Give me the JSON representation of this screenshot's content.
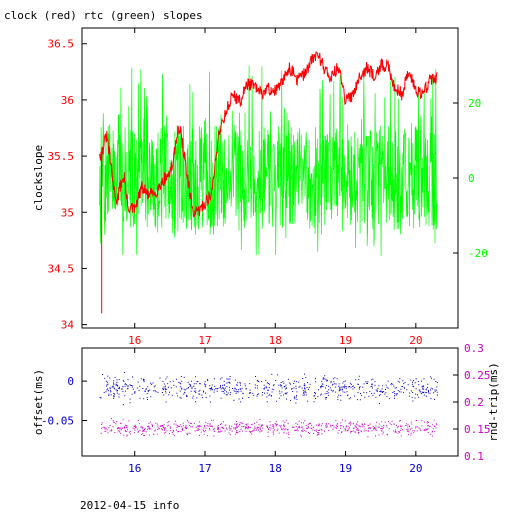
{
  "title": "clock (red) rtc (green) slopes",
  "footer": "2012-04-15 info",
  "colors": {
    "clock": "#ff0000",
    "rtc": "#00ff00",
    "offset": "#0000cc",
    "rtt": "#cc00cc",
    "axis": "#000000"
  },
  "chart_data": [
    {
      "type": "line",
      "id": "slopes",
      "title": "clock (red) rtc (green) slopes",
      "ylabel": "clockslope",
      "ylabel_right": "",
      "xlim": [
        15.25,
        20.6
      ],
      "ylim": [
        33.97,
        36.64
      ],
      "ylim_right": [
        -40,
        40
      ],
      "x_ticks": [
        16,
        17,
        18,
        19,
        20
      ],
      "x_tick_labels": [
        "16",
        "17",
        "18",
        "19",
        "20"
      ],
      "y_ticks": [
        34,
        34.5,
        35,
        35.5,
        36,
        36.5
      ],
      "y_tick_labels": [
        "34",
        "34.5",
        "35",
        "35.5",
        "36",
        "36.5"
      ],
      "y_right_ticks": [
        -20,
        0,
        20
      ],
      "y_right_tick_labels": [
        "-20",
        "0",
        "20"
      ],
      "grid": false,
      "series": [
        {
          "name": "clock",
          "axis": "left",
          "x": [
            15.5,
            15.52,
            15.56,
            15.6,
            15.65,
            15.7,
            15.75,
            15.8,
            15.85,
            15.9,
            16.0,
            16.1,
            16.2,
            16.3,
            16.4,
            16.5,
            16.55,
            16.6,
            16.65,
            16.7,
            16.75,
            16.8,
            16.85,
            16.9,
            17.0,
            17.1,
            17.2,
            17.3,
            17.4,
            17.5,
            17.6,
            17.7,
            17.8,
            17.9,
            18.0,
            18.1,
            18.2,
            18.3,
            18.4,
            18.5,
            18.6,
            18.7,
            18.8,
            18.9,
            19.0,
            19.1,
            19.2,
            19.3,
            19.4,
            19.5,
            19.6,
            19.7,
            19.8,
            19.9,
            20.0,
            20.1,
            20.2,
            20.3
          ],
          "values": [
            35.55,
            35.5,
            35.6,
            35.68,
            35.48,
            35.22,
            35.1,
            35.25,
            35.32,
            35.05,
            35.02,
            35.22,
            35.15,
            35.18,
            35.28,
            35.35,
            35.45,
            35.72,
            35.72,
            35.52,
            35.3,
            35.1,
            34.98,
            35.0,
            35.08,
            35.18,
            35.72,
            35.9,
            36.05,
            35.98,
            36.15,
            36.12,
            36.05,
            36.1,
            36.08,
            36.15,
            36.3,
            36.18,
            36.22,
            36.33,
            36.42,
            36.28,
            36.2,
            36.3,
            35.98,
            36.05,
            36.22,
            36.28,
            36.22,
            36.3,
            36.3,
            36.12,
            36.05,
            36.25,
            36.1,
            36.05,
            36.18,
            36.2
          ]
        },
        {
          "name": "rtc",
          "axis": "right",
          "x": [
            15.5,
            16.0,
            16.5,
            17.0,
            17.5,
            18.0,
            18.5,
            19.0,
            19.5,
            20.0,
            20.3
          ],
          "values": [
            0,
            0,
            0,
            0,
            0,
            0,
            0,
            0,
            0,
            0,
            0
          ],
          "noise_range": [
            -21,
            30
          ]
        }
      ]
    },
    {
      "type": "scatter",
      "id": "offset",
      "ylabel": "offset(ms)",
      "ylabel_right": "rnd-trip(ms)",
      "xlim": [
        15.25,
        20.6
      ],
      "ylim": [
        -0.095,
        0.042
      ],
      "ylim_right": [
        0.1,
        0.3
      ],
      "x_ticks": [
        16,
        17,
        18,
        19,
        20
      ],
      "x_tick_labels": [
        "16",
        "17",
        "18",
        "19",
        "20"
      ],
      "y_ticks": [
        -0.05,
        0
      ],
      "y_tick_labels": [
        "-0.05",
        "0"
      ],
      "y_right_ticks": [
        0.1,
        0.15,
        0.2,
        0.25,
        0.3
      ],
      "y_right_tick_labels": [
        "0.1",
        "0.15",
        "0.2",
        "0.25",
        "0.3"
      ],
      "grid": false,
      "series": [
        {
          "name": "offset",
          "axis": "left",
          "x_range": [
            15.5,
            20.3
          ],
          "center": -0.01,
          "spread": 0.022
        },
        {
          "name": "rnd-trip",
          "axis": "right",
          "x_range": [
            15.5,
            20.3
          ],
          "center": 0.152,
          "spread": 0.02
        }
      ]
    }
  ]
}
